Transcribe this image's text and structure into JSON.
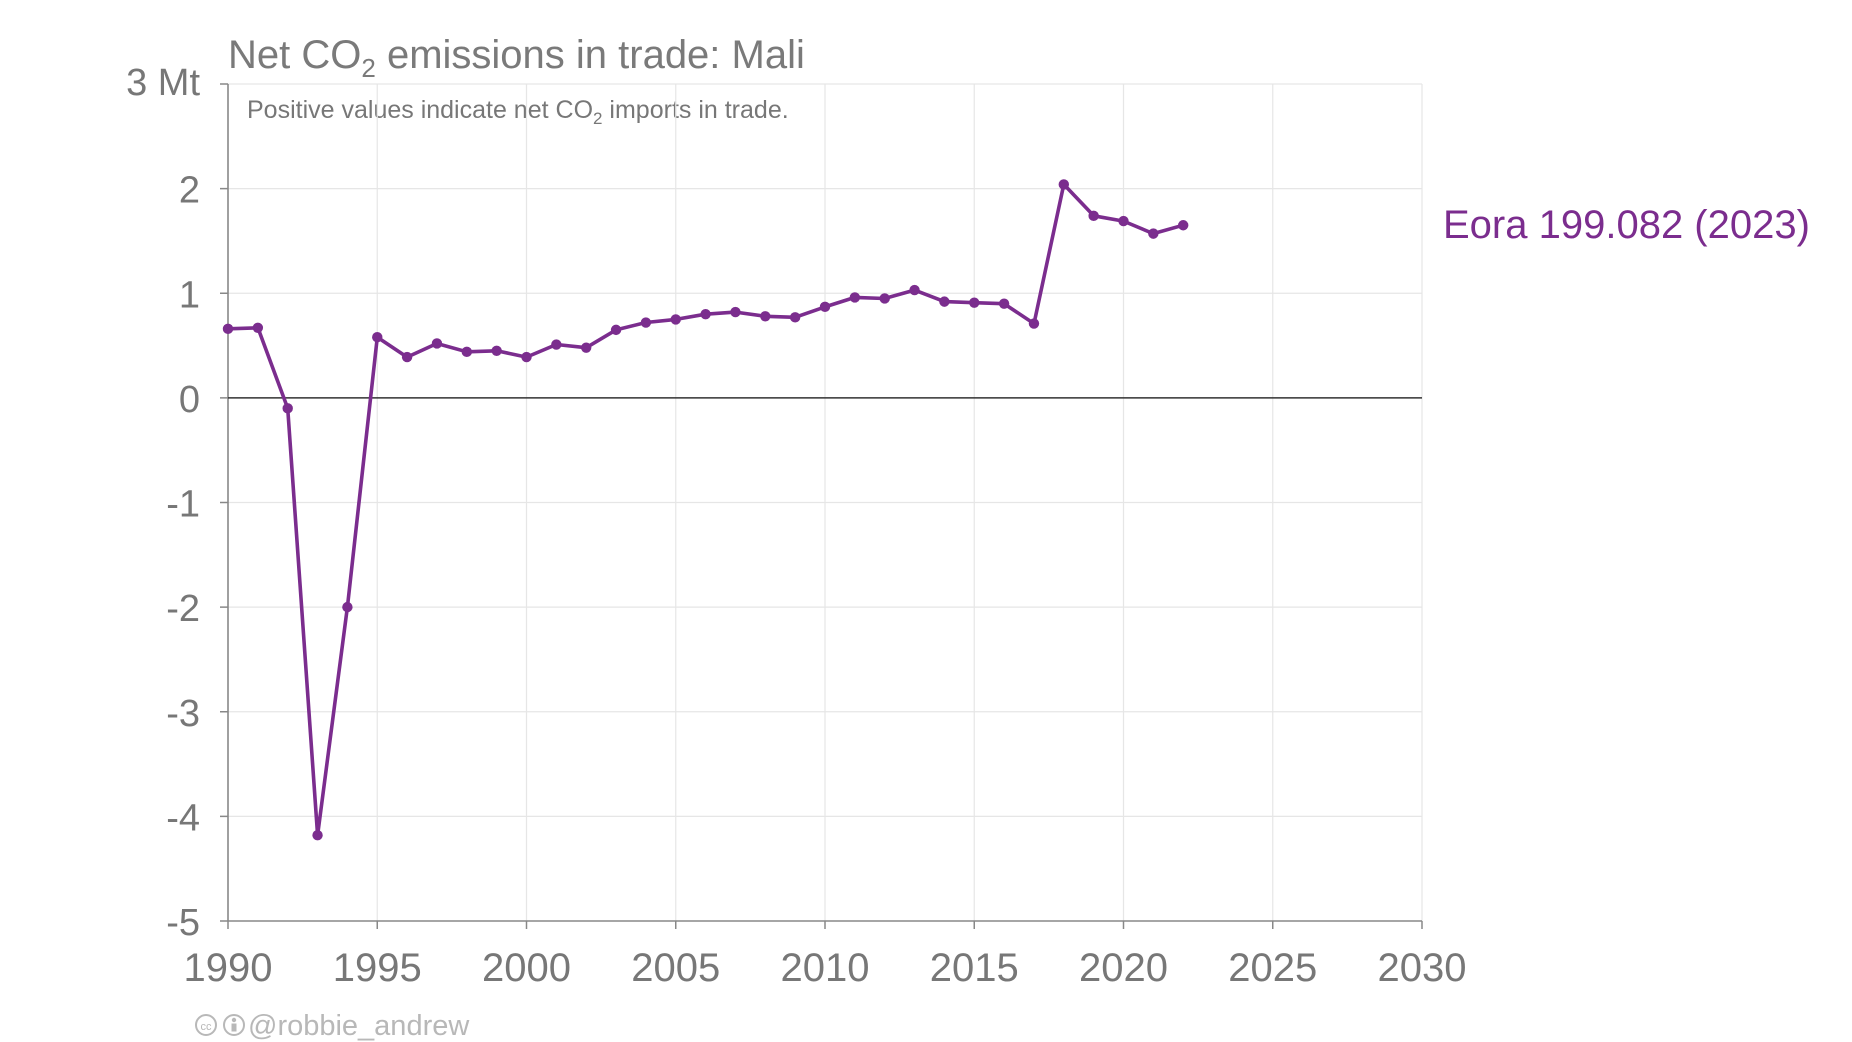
{
  "chart_data": {
    "type": "line",
    "title": {
      "prefix": "Net CO",
      "subscript": "2",
      "suffix": " emissions in trade: Mali"
    },
    "subtitle": {
      "prefix": "Positive values indicate net CO",
      "subscript": "2",
      "suffix": " imports in trade."
    },
    "y_unit_label": "3 Mt",
    "xlim": [
      1990,
      2030
    ],
    "ylim": [
      -5,
      3
    ],
    "x_ticks": [
      "1990",
      "1995",
      "2000",
      "2005",
      "2010",
      "2015",
      "2020",
      "2025",
      "2030"
    ],
    "y_ticks": [
      "2",
      "1",
      "0",
      "-1",
      "-2",
      "-3",
      "-4",
      "-5"
    ],
    "grid": true,
    "zero_line": true,
    "series": [
      {
        "name": "Eora 199.082 (2023)",
        "color": "#7b2d8e",
        "x": [
          1990,
          1991,
          1992,
          1993,
          1994,
          1995,
          1996,
          1997,
          1998,
          1999,
          2000,
          2001,
          2002,
          2003,
          2004,
          2005,
          2006,
          2007,
          2008,
          2009,
          2010,
          2011,
          2012,
          2013,
          2014,
          2015,
          2016,
          2017,
          2018,
          2019,
          2020,
          2021,
          2022
        ],
        "y": [
          0.66,
          0.67,
          -0.1,
          -4.18,
          -2.0,
          0.58,
          0.39,
          0.52,
          0.44,
          0.45,
          0.39,
          0.51,
          0.48,
          0.65,
          0.72,
          0.75,
          0.8,
          0.82,
          0.78,
          0.77,
          0.87,
          0.96,
          0.95,
          1.03,
          0.92,
          0.91,
          0.9,
          0.71,
          2.04,
          1.74,
          1.69,
          1.57,
          1.65
        ]
      }
    ]
  },
  "credit": {
    "cc_icon": "cc-icon",
    "by_icon": "attribution-icon",
    "text": "@robbie_andrew"
  },
  "colors": {
    "axis": "#888888",
    "grid": "#e6e6e6",
    "zero_line": "#333333",
    "text": "#777777",
    "credit": "#b8b8b8"
  }
}
